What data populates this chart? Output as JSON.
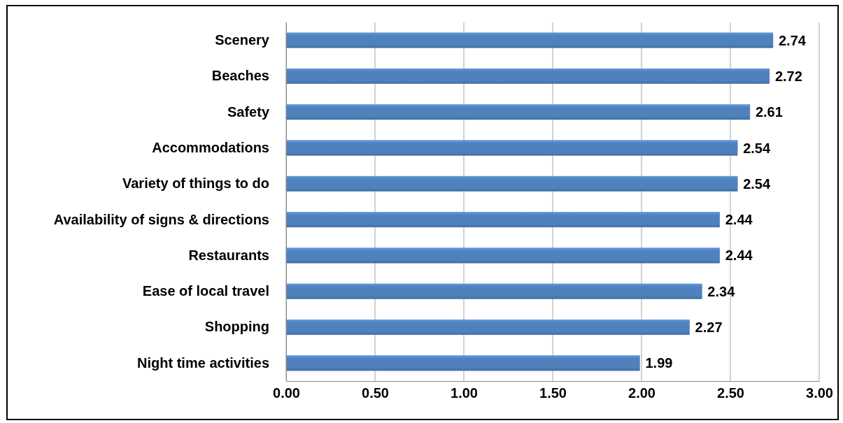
{
  "chart_data": {
    "type": "bar",
    "orientation": "horizontal",
    "categories": [
      "Scenery",
      "Beaches",
      "Safety",
      "Accommodations",
      "Variety of things to do",
      "Availability of signs & directions",
      "Restaurants",
      "Ease of local travel",
      "Shopping",
      "Night time activities"
    ],
    "values": [
      2.74,
      2.72,
      2.61,
      2.54,
      2.54,
      2.44,
      2.44,
      2.34,
      2.27,
      1.99
    ],
    "color": "#4f81bd",
    "xlim": [
      0,
      3
    ],
    "xticks": [
      {
        "value": 0,
        "label": "0.00"
      },
      {
        "value": 0.5,
        "label": "0.50"
      },
      {
        "value": 1,
        "label": "1.00"
      },
      {
        "value": 1.5,
        "label": "1.50"
      },
      {
        "value": 2,
        "label": "2.00"
      },
      {
        "value": 2.5,
        "label": "2.50"
      },
      {
        "value": 3,
        "label": "3.00"
      }
    ],
    "grid": "x",
    "data_labels": true
  }
}
